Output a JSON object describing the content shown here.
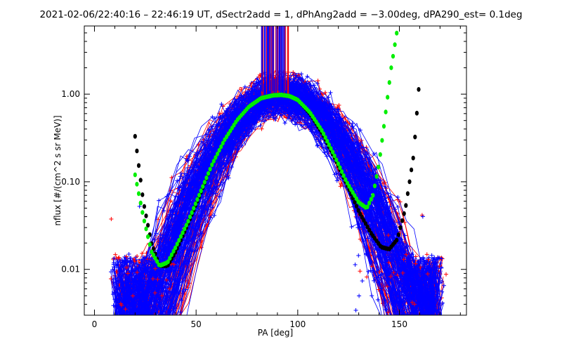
{
  "chart_data": {
    "type": "line",
    "title": "2021-02-06/22:40:16 – 22:46:19 UT, dSectr2add = 1, dPhAng2add = −3.00deg, dPA290_est=   0.1deg",
    "xlabel": "PA [deg]",
    "ylabel": "nflux [#/(cm^2 s sr MeV)]",
    "xscale": "linear",
    "yscale": "log",
    "xlim": [
      -5,
      183
    ],
    "ylim": [
      0.003,
      6
    ],
    "xticks": [
      0,
      50,
      100,
      150
    ],
    "xtick_labels": [
      "0",
      "50",
      "100",
      "150"
    ],
    "yticks": [
      0.01,
      0.1,
      1
    ],
    "ytick_labels": [
      "0.01",
      "0.10",
      "1.00"
    ],
    "grid": false,
    "legend": "none",
    "colors": {
      "red_traces": "#ff0000",
      "blue_traces": "#0000ff",
      "green_fit": "#00ee00",
      "black_fit": "#000000"
    },
    "series": [
      {
        "style": "dotted-thick",
        "color": "#00ee00",
        "x": [
          20,
          24,
          28,
          32,
          36,
          40,
          46,
          52,
          58,
          64,
          70,
          76,
          82,
          88,
          92,
          96,
          100,
          106,
          112,
          118,
          124,
          130,
          134,
          137,
          140,
          143,
          146,
          149
        ],
        "y": [
          0.12,
          0.04,
          0.016,
          0.011,
          0.012,
          0.018,
          0.035,
          0.075,
          0.16,
          0.3,
          0.5,
          0.72,
          0.9,
          0.97,
          0.98,
          0.95,
          0.86,
          0.62,
          0.38,
          0.2,
          0.1,
          0.058,
          0.05,
          0.07,
          0.16,
          0.55,
          2.0,
          5.5
        ]
      },
      {
        "style": "dotted-thick",
        "color": "#000000",
        "x": [
          20,
          24,
          28,
          32,
          36,
          40,
          46,
          52,
          58,
          64,
          70,
          76,
          82,
          88,
          92,
          96,
          100,
          106,
          112,
          118,
          124,
          130,
          136,
          141,
          145,
          149,
          153,
          157,
          160
        ],
        "y": [
          0.33,
          0.06,
          0.02,
          0.011,
          0.011,
          0.016,
          0.033,
          0.072,
          0.16,
          0.3,
          0.5,
          0.72,
          0.9,
          0.97,
          0.98,
          0.95,
          0.86,
          0.6,
          0.36,
          0.19,
          0.095,
          0.046,
          0.026,
          0.018,
          0.017,
          0.022,
          0.05,
          0.2,
          1.6
        ]
      }
    ],
    "trace_band": {
      "peak_pa": 92,
      "peak_flux_range": [
        0.7,
        1.1
      ],
      "near_90_spike": [
        0.9,
        6
      ],
      "pa_range": [
        8,
        172
      ],
      "flux_floor": 0.003
    }
  }
}
